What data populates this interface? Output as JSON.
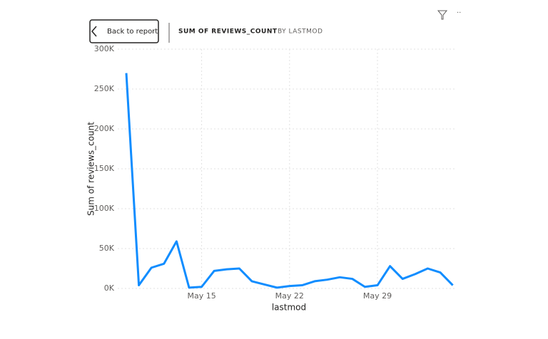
{
  "chart_data": {
    "type": "line",
    "back_button": "Back to report",
    "title": "SUM OF REVIEWS_COUNT",
    "subtitle": "BY LASTMOD",
    "x_label": "lastmod",
    "y_label": "Sum of reviews_count",
    "categories": [
      null,
      null,
      null,
      null,
      null,
      null,
      "May 15",
      null,
      null,
      null,
      null,
      null,
      null,
      "May 22",
      null,
      null,
      null,
      null,
      null,
      null,
      "May 29",
      null,
      null,
      null,
      null,
      null,
      null
    ],
    "series": [
      {
        "name": "Sum of reviews_count",
        "color": "#118dff",
        "values": [
          270000,
          4000,
          26000,
          31000,
          59000,
          1000,
          2000,
          22000,
          24000,
          25000,
          9000,
          5000,
          1000,
          3000,
          4000,
          9000,
          11000,
          14000,
          12000,
          2000,
          4000,
          28000,
          12000,
          18000,
          25000,
          20000,
          4000
        ]
      }
    ],
    "ylim": [
      0,
      300000
    ],
    "yticks": [
      {
        "value": 0,
        "label": "0K"
      },
      {
        "value": 50000,
        "label": "50K"
      },
      {
        "value": 100000,
        "label": "100K"
      },
      {
        "value": 150000,
        "label": "150K"
      },
      {
        "value": 200000,
        "label": "200K"
      },
      {
        "value": 250000,
        "label": "250K"
      },
      {
        "value": 300000,
        "label": "300K"
      }
    ],
    "grid": true
  }
}
